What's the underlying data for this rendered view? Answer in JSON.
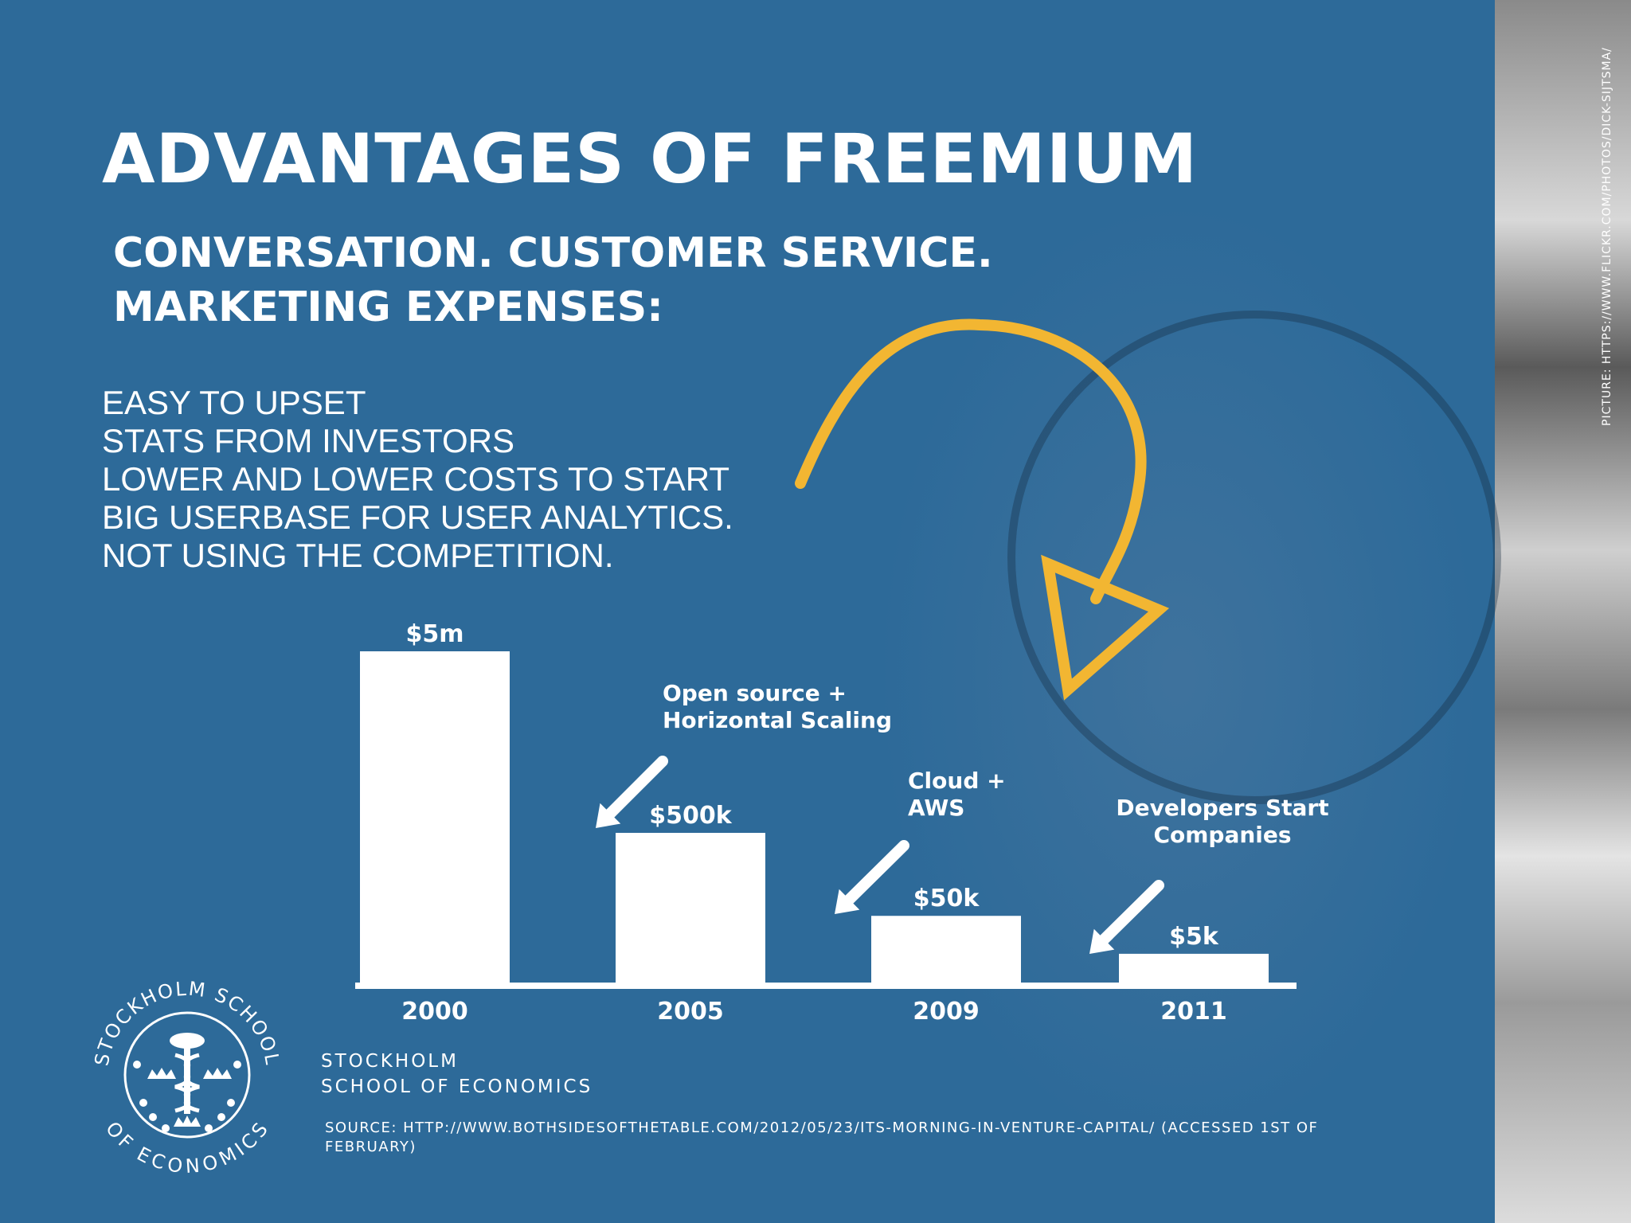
{
  "slide": {
    "title": "ADVANTAGES OF FREEMIUM",
    "subtitle_line1": "CONVERSATION. CUSTOMER SERVICE.",
    "subtitle_line2": "MARKETING EXPENSES:",
    "bullets": [
      "EASY TO UPSET",
      "STATS FROM INVESTORS",
      "LOWER AND LOWER COSTS TO START",
      "BIG USERBASE FOR USER ANALYTICS.",
      "NOT USING THE COMPETITION."
    ],
    "school_line1": "STOCKHOLM",
    "school_line2": "SCHOOL OF ECONOMICS",
    "source": "SOURCE: HTTP://WWW.BOTHSIDESOFTHETABLE.COM/2012/05/23/ITS-MORNING-IN-VENTURE-CAPITAL/ (ACCESSED 1ST OF FEBRUARY)",
    "photo_credit": "PICTURE: HTTPS://WWW.FLICKR.COM/PHOTOS/DICK-SIJTSMA/",
    "logo_ring_top": "STOCKHOLM SCHOOL",
    "logo_ring_bottom": "OF ECONOMICS"
  },
  "colors": {
    "background": "#2d6a99",
    "text": "#ffffff",
    "accent_arrow": "#f2b632",
    "bars": "#ffffff"
  },
  "icons": {
    "curved_arrow": "curved-arrow-icon",
    "pointer_arrow": "diagonal-arrow-icon",
    "logo": "stockholm-school-of-economics-logo"
  },
  "chart_data": {
    "type": "bar",
    "categories": [
      "2000",
      "2005",
      "2009",
      "2011"
    ],
    "values": [
      5000000,
      500000,
      50000,
      5000
    ],
    "data_labels": [
      "$5m",
      "$500k",
      "$50k",
      "$5k"
    ],
    "annotations": [
      {
        "text": [
          "Open source +",
          "Horizontal Scaling"
        ],
        "category": "2005"
      },
      {
        "text": [
          "Cloud +",
          "AWS"
        ],
        "category": "2009"
      },
      {
        "text": [
          "Developers Start",
          "Companies"
        ],
        "category": "2011"
      }
    ],
    "scale_note": "bars shown on a compressed (non-linear) scale",
    "grid": false,
    "legend": "none"
  }
}
